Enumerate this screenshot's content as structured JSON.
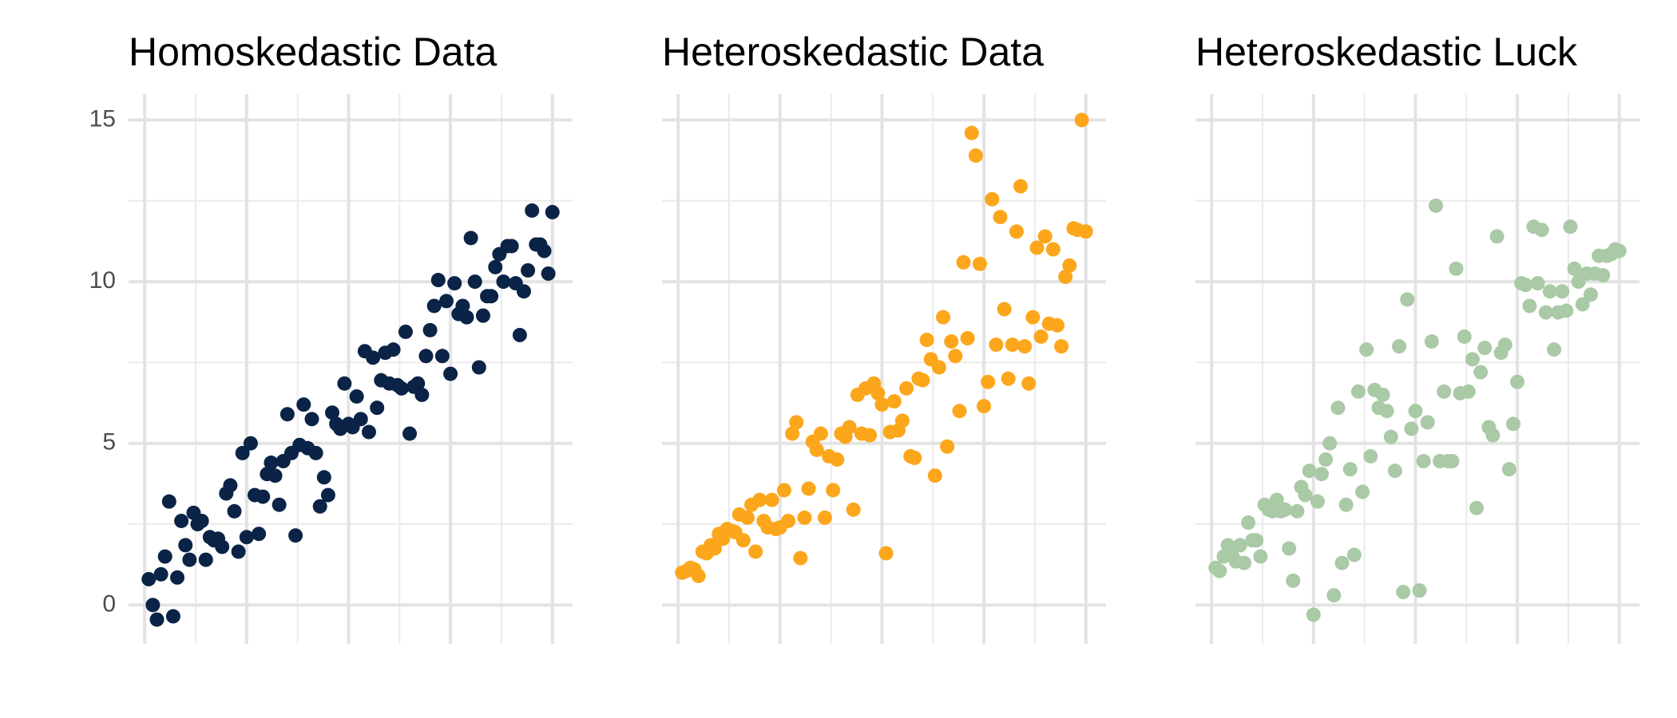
{
  "chart_data": [
    {
      "type": "scatter",
      "title": "Homoskedastic Data",
      "color": "#0a2346",
      "x": [
        1,
        2,
        3,
        4,
        5,
        6,
        7,
        8,
        9,
        10,
        11,
        12,
        13,
        14,
        15,
        16,
        17,
        18,
        19,
        20,
        21,
        22,
        23,
        24,
        25,
        26,
        27,
        28,
        29,
        30,
        31,
        32,
        33,
        34,
        35,
        36,
        37,
        38,
        39,
        40,
        41,
        42,
        43,
        44,
        45,
        46,
        47,
        48,
        49,
        50,
        51,
        52,
        53,
        54,
        55,
        56,
        57,
        58,
        59,
        60,
        61,
        62,
        63,
        64,
        65,
        66,
        67,
        68,
        69,
        70,
        71,
        72,
        73,
        74,
        75,
        76,
        77,
        78,
        79,
        80,
        81,
        82,
        83,
        84,
        85,
        86,
        87,
        88,
        89,
        90,
        91,
        92,
        93,
        94,
        95,
        96,
        97,
        98,
        99,
        100
      ],
      "values": [
        0.8,
        0.0,
        -0.45,
        0.95,
        1.5,
        3.2,
        -0.35,
        0.85,
        2.6,
        1.85,
        1.4,
        2.85,
        2.5,
        2.6,
        1.4,
        2.1,
        2.0,
        2.05,
        1.8,
        3.45,
        3.7,
        2.9,
        1.65,
        4.7,
        2.1,
        5.0,
        3.4,
        2.2,
        3.35,
        4.05,
        4.4,
        4.0,
        3.1,
        4.45,
        5.9,
        4.7,
        2.15,
        4.95,
        6.2,
        4.85,
        5.75,
        4.7,
        3.05,
        3.95,
        3.4,
        5.95,
        5.6,
        5.45,
        6.85,
        5.6,
        5.5,
        6.45,
        5.75,
        7.85,
        5.35,
        7.65,
        6.1,
        6.95,
        7.8,
        6.85,
        7.9,
        6.8,
        6.7,
        8.45,
        5.3,
        6.75,
        6.85,
        6.5,
        7.7,
        8.5,
        9.25,
        10.05,
        7.7,
        9.4,
        7.15,
        9.95,
        9.0,
        9.25,
        8.9,
        11.35,
        10.0,
        7.35,
        8.95,
        9.55,
        9.55,
        10.45,
        10.85,
        10.0,
        11.1,
        11.1,
        9.95,
        8.35,
        9.7,
        10.35,
        12.2,
        11.15,
        11.15,
        10.95,
        10.25,
        12.15
      ],
      "xlim": [
        -3.95,
        104.95
      ],
      "xticks": [
        0,
        25,
        50,
        75,
        100
      ],
      "xminor": [
        12.5,
        37.5,
        62.5,
        87.5
      ],
      "ylim": [
        -1.2,
        15.8
      ],
      "yticks": [
        0,
        5,
        10,
        15
      ],
      "yminor": [
        2.5,
        7.5,
        12.5
      ],
      "x_tick_labels": false,
      "y_tick_labels": true,
      "grid": true
    },
    {
      "type": "scatter",
      "title": "Heteroskedastic Data",
      "color": "#fca61b",
      "x": [
        1,
        2,
        3,
        4,
        5,
        6,
        7,
        8,
        9,
        10,
        11,
        12,
        13,
        14,
        15,
        16,
        17,
        18,
        19,
        20,
        21,
        22,
        23,
        24,
        25,
        26,
        27,
        28,
        29,
        30,
        31,
        32,
        33,
        34,
        35,
        36,
        37,
        38,
        39,
        40,
        41,
        42,
        43,
        44,
        45,
        46,
        47,
        48,
        49,
        50,
        51,
        52,
        53,
        54,
        55,
        56,
        57,
        58,
        59,
        60,
        61,
        62,
        63,
        64,
        65,
        66,
        67,
        68,
        69,
        70,
        71,
        72,
        73,
        74,
        75,
        76,
        77,
        78,
        79,
        80,
        81,
        82,
        83,
        84,
        85,
        86,
        87,
        88,
        89,
        90,
        91,
        92,
        93,
        94,
        95,
        96,
        97,
        98,
        99,
        100
      ],
      "values": [
        1.0,
        1.05,
        1.15,
        1.1,
        0.9,
        1.65,
        1.6,
        1.85,
        1.75,
        2.2,
        2.05,
        2.35,
        2.3,
        2.25,
        2.8,
        2.0,
        2.7,
        3.1,
        1.65,
        3.25,
        2.6,
        2.4,
        3.25,
        2.35,
        2.4,
        3.55,
        2.6,
        5.3,
        5.65,
        1.45,
        2.7,
        3.6,
        5.05,
        4.8,
        5.3,
        2.7,
        4.6,
        3.55,
        4.5,
        5.3,
        5.2,
        5.5,
        2.95,
        6.5,
        5.3,
        6.7,
        5.25,
        6.85,
        6.55,
        6.2,
        1.6,
        5.35,
        6.3,
        5.4,
        5.7,
        6.7,
        4.6,
        4.55,
        7.0,
        6.95,
        8.2,
        7.6,
        4.0,
        7.35,
        8.9,
        4.9,
        8.15,
        7.7,
        6.0,
        10.6,
        8.25,
        14.6,
        13.9,
        10.55,
        6.15,
        6.9,
        12.55,
        8.05,
        12.0,
        9.15,
        7.0,
        8.05,
        11.55,
        12.95,
        8.0,
        6.85,
        8.9,
        11.05,
        8.3,
        11.4,
        8.7,
        11.0,
        8.65,
        8.0,
        10.15,
        10.5,
        11.65,
        11.6,
        15.0,
        11.55
      ],
      "xlim": [
        -3.95,
        104.95
      ],
      "xticks": [
        0,
        25,
        50,
        75,
        100
      ],
      "xminor": [
        12.5,
        37.5,
        62.5,
        87.5
      ],
      "ylim": [
        -1.2,
        15.8
      ],
      "yticks": [
        0,
        5,
        10,
        15
      ],
      "yminor": [
        2.5,
        7.5,
        12.5
      ],
      "x_tick_labels": false,
      "y_tick_labels": false,
      "grid": true
    },
    {
      "type": "scatter",
      "title": "Heteroskedastic Luck",
      "color": "#aac9a6",
      "x": [
        1,
        2,
        3,
        4,
        5,
        6,
        7,
        8,
        9,
        10,
        11,
        12,
        13,
        14,
        15,
        16,
        17,
        18,
        19,
        20,
        21,
        22,
        23,
        24,
        25,
        26,
        27,
        28,
        29,
        30,
        31,
        32,
        33,
        34,
        35,
        36,
        37,
        38,
        39,
        40,
        41,
        42,
        43,
        44,
        45,
        46,
        47,
        48,
        49,
        50,
        51,
        52,
        53,
        54,
        55,
        56,
        57,
        58,
        59,
        60,
        61,
        62,
        63,
        64,
        65,
        66,
        67,
        68,
        69,
        70,
        71,
        72,
        73,
        74,
        75,
        76,
        77,
        78,
        79,
        80,
        81,
        82,
        83,
        84,
        85,
        86,
        87,
        88,
        89,
        90,
        91,
        92,
        93,
        94,
        95,
        96,
        97,
        98,
        99,
        100
      ],
      "values": [
        1.15,
        1.05,
        1.5,
        1.85,
        1.55,
        1.35,
        1.85,
        1.3,
        2.55,
        2.0,
        2.0,
        1.5,
        3.1,
        2.95,
        2.9,
        3.25,
        2.9,
        2.95,
        1.75,
        0.75,
        2.9,
        3.65,
        3.4,
        4.15,
        -0.3,
        3.2,
        4.05,
        4.5,
        5.0,
        0.3,
        6.1,
        1.3,
        3.1,
        4.2,
        1.55,
        6.6,
        3.5,
        7.9,
        4.6,
        6.65,
        6.1,
        6.5,
        6.0,
        5.2,
        4.15,
        8.0,
        0.4,
        9.45,
        5.45,
        6.0,
        0.45,
        4.45,
        5.65,
        8.15,
        12.35,
        4.45,
        6.6,
        4.45,
        4.45,
        10.4,
        6.55,
        8.3,
        6.6,
        7.6,
        3.0,
        7.2,
        7.95,
        5.5,
        5.25,
        11.4,
        7.8,
        8.05,
        4.2,
        5.6,
        6.9,
        9.95,
        9.9,
        9.25,
        11.7,
        9.95,
        11.6,
        9.05,
        9.7,
        7.9,
        9.05,
        9.7,
        9.1,
        11.7,
        10.4,
        10.0,
        9.3,
        10.25,
        9.6,
        10.25,
        10.8,
        10.2,
        10.8,
        10.85,
        11.0,
        10.95
      ],
      "xlim": [
        -3.95,
        104.95
      ],
      "xticks": [
        0,
        25,
        50,
        75,
        100
      ],
      "xminor": [
        12.5,
        37.5,
        62.5,
        87.5
      ],
      "ylim": [
        -1.2,
        15.8
      ],
      "yticks": [
        0,
        5,
        10,
        15
      ],
      "yminor": [
        2.5,
        7.5,
        12.5
      ],
      "x_tick_labels": false,
      "y_tick_labels": false,
      "grid": true
    }
  ]
}
